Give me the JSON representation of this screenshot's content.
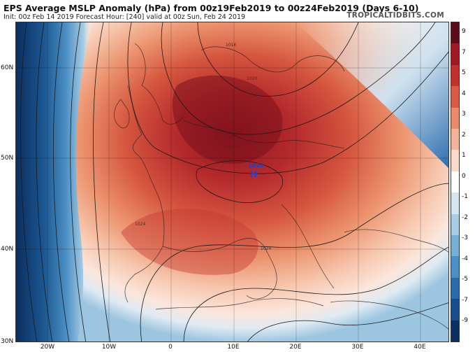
{
  "header": {
    "title": "EPS Average MSLP Anomaly (hPa) from 00z19Feb2019 to 00z24Feb2019 (Days 6-10)",
    "subtitle": "Init: 00z Feb 14 2019   Forecast Hour: [240]   valid at 00z Sun, Feb 24 2019",
    "brand": "TROPICALTIDBITS.COM"
  },
  "map": {
    "lat_labels": [
      "60N",
      "50N",
      "40N",
      "30N"
    ],
    "lon_labels": [
      "20W",
      "10W",
      "0",
      "10E",
      "20E",
      "30E",
      "40E"
    ],
    "high_center": {
      "label": "H",
      "value": "1029"
    },
    "isobar_labels": [
      "1016",
      "1020",
      "1024",
      "1028",
      "1024"
    ]
  },
  "colorbar": {
    "labels": [
      "9",
      "7",
      "5",
      "4",
      "3",
      "2",
      "1",
      "0",
      "-1",
      "-2",
      "-3",
      "-4",
      "-5",
      "-7",
      "-9"
    ],
    "colors": [
      "#5c0d1b",
      "#9e1a25",
      "#c1322e",
      "#d85c45",
      "#e88a6b",
      "#f2b39a",
      "#f9d9c8",
      "#ffffff",
      "#d5e5f1",
      "#a9cde4",
      "#77afd5",
      "#4b8fc4",
      "#2a6bae",
      "#174d8c",
      "#0b2f60"
    ]
  }
}
